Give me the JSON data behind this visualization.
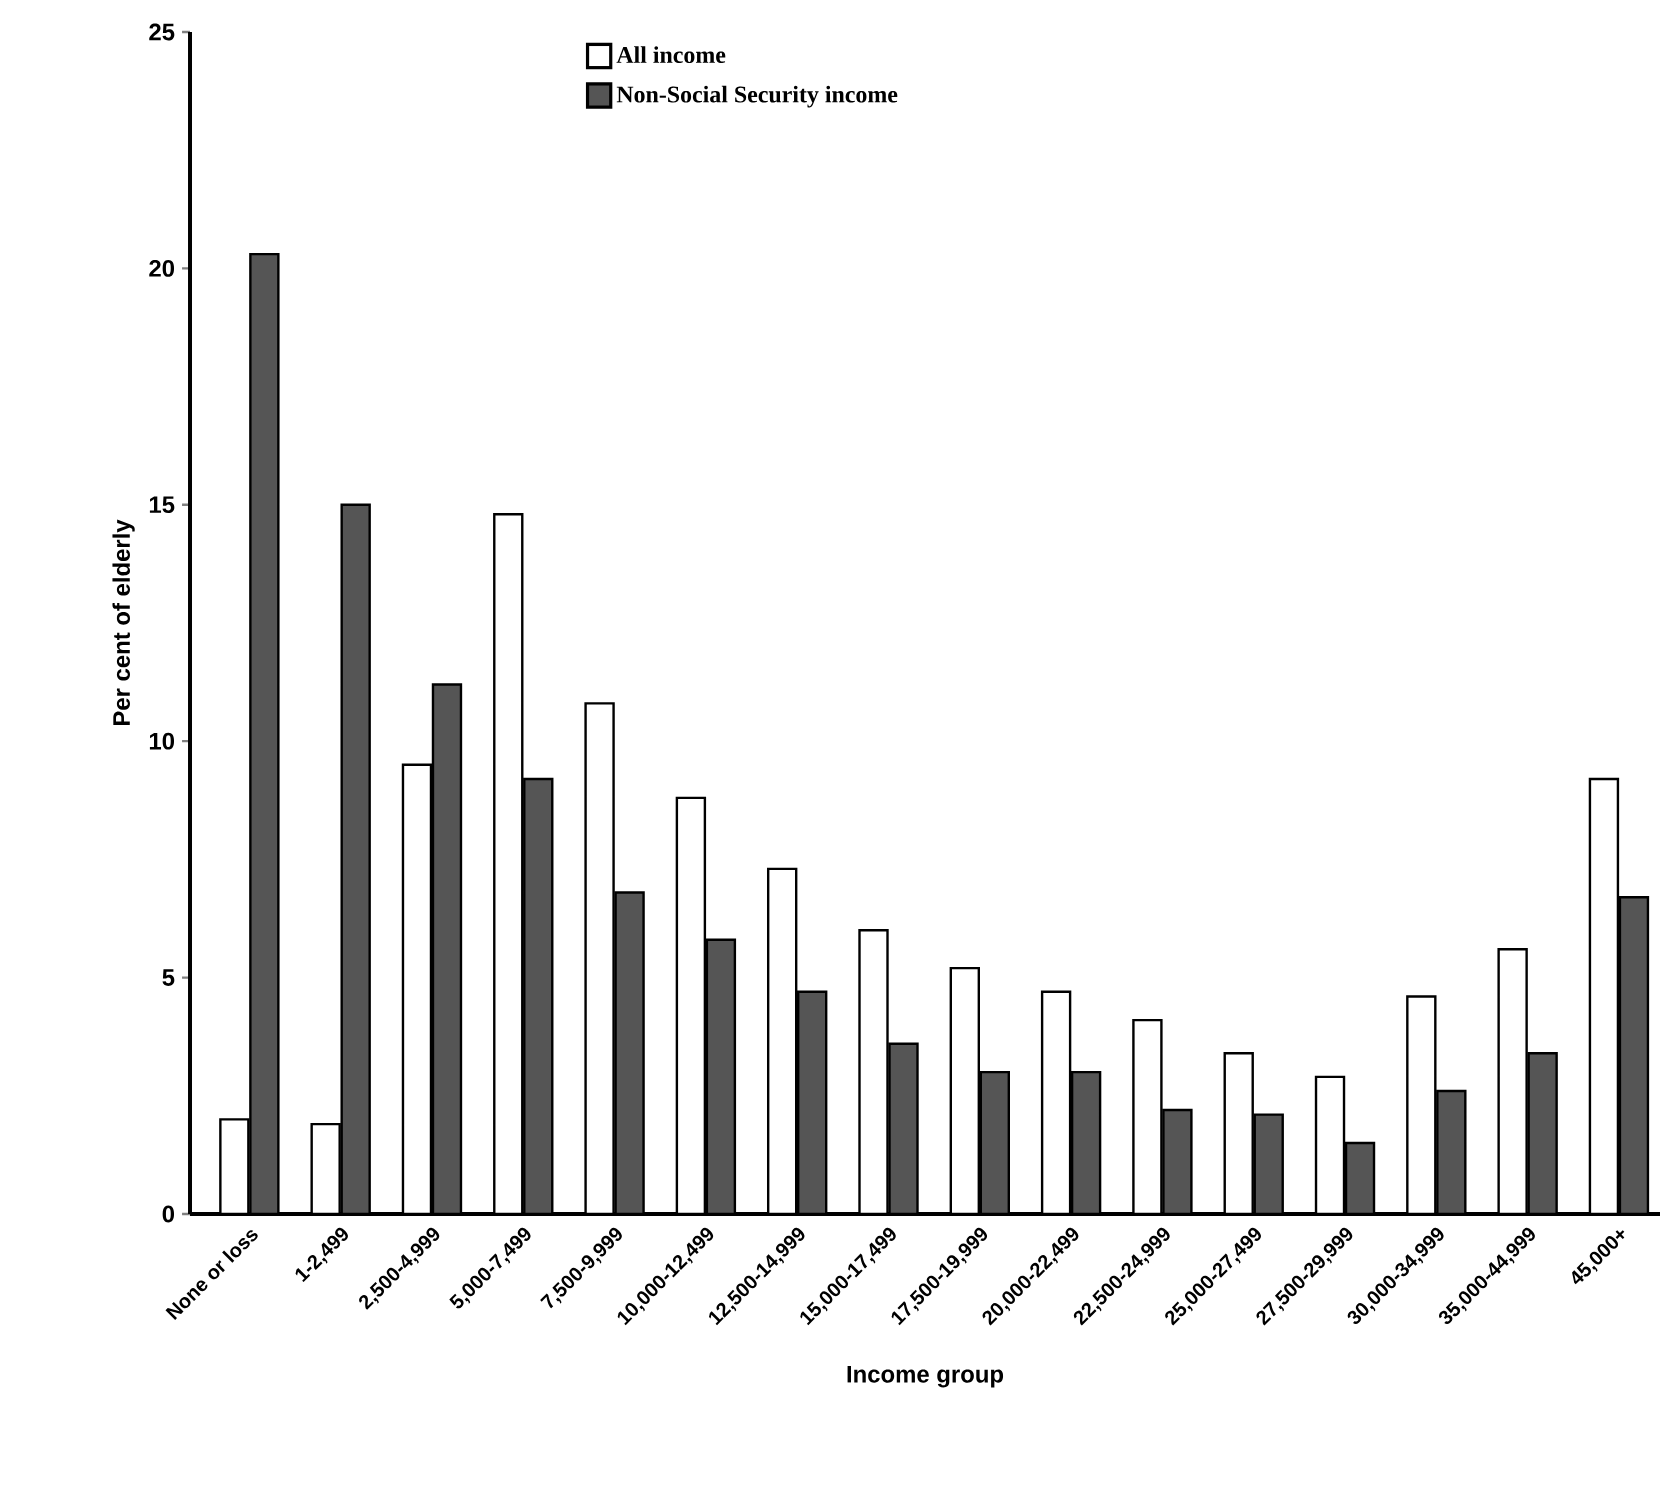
{
  "chart_data": {
    "type": "bar",
    "xlabel": "Income group",
    "ylabel": "Per cent of elderly",
    "categories": [
      "None or loss",
      "1-2,499",
      "2,500-4,999",
      "5,000-7,499",
      "7,500-9,999",
      "10,000-12,499",
      "12,500-14,999",
      "15,000-17,499",
      "17,500-19,999",
      "20,000-22,499",
      "22,500-24,999",
      "25,000-27,499",
      "27,500-29,999",
      "30,000-34,999",
      "35,000-44,999",
      "45,000+"
    ],
    "series": [
      {
        "name": "All income",
        "color": "#ffffff",
        "values": [
          2.0,
          1.9,
          9.5,
          14.8,
          10.8,
          8.8,
          7.3,
          6.0,
          5.2,
          4.7,
          4.1,
          3.4,
          2.9,
          4.6,
          5.6,
          9.2
        ]
      },
      {
        "name": "Non-Social Security income",
        "color": "#555555",
        "values": [
          20.3,
          15.0,
          11.2,
          9.2,
          6.8,
          5.8,
          4.7,
          3.6,
          3.0,
          3.0,
          2.2,
          2.1,
          1.5,
          2.6,
          3.4,
          6.7
        ]
      }
    ],
    "ylim": [
      0,
      25
    ],
    "yticks": [
      0,
      5,
      10,
      15,
      20,
      25
    ],
    "grid": false,
    "legend": "top"
  }
}
